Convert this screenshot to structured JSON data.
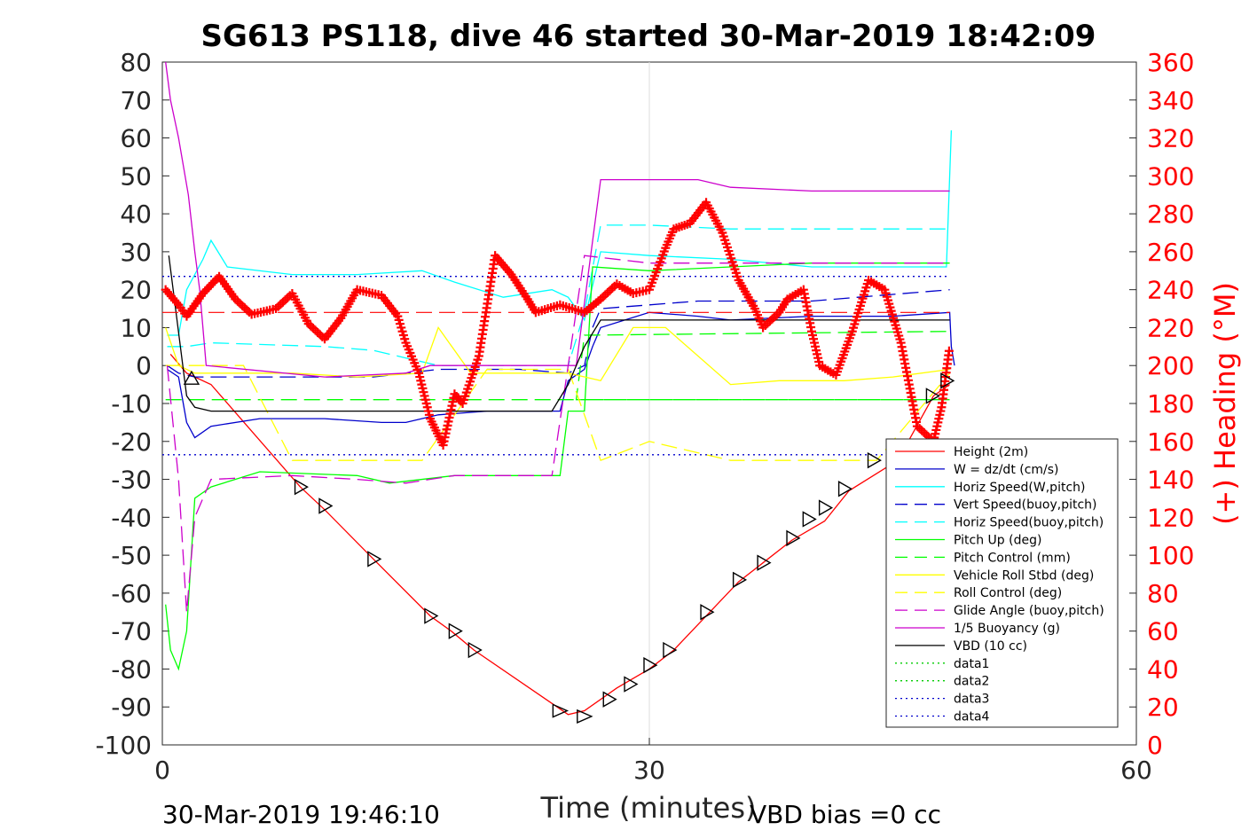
{
  "chart_data": {
    "type": "line",
    "title": "SG613 PS118, dive 46 started 30-Mar-2019 18:42:09",
    "xlabel": "Time (minutes)",
    "ylabel_right": "(+) Heading (°M)",
    "xlim": [
      0,
      60
    ],
    "ylim_left": [
      -100,
      80
    ],
    "ylim_right": [
      0,
      360
    ],
    "x_ticks": [
      "0",
      "30",
      "60"
    ],
    "y_ticks_left": [
      "80",
      "70",
      "60",
      "50",
      "40",
      "30",
      "20",
      "10",
      "0",
      "-10",
      "-20",
      "-30",
      "-40",
      "-50",
      "-60",
      "-70",
      "-80",
      "-90",
      "-100"
    ],
    "y_ticks_right": [
      "360",
      "340",
      "320",
      "300",
      "280",
      "260",
      "240",
      "220",
      "200",
      "180",
      "160",
      "140",
      "120",
      "100",
      "80",
      "60",
      "40",
      "20",
      "0"
    ],
    "grid": "x only at 30",
    "legend_position": "bottom-right",
    "footer_left": "30-Mar-2019 19:46:10",
    "footer_right": "VBD bias =0 cc",
    "series": [
      {
        "name": "Height (2m)",
        "color": "#ff0000",
        "style": "solid",
        "points": [
          [
            0.5,
            3
          ],
          [
            1.5,
            -2
          ],
          [
            3,
            -5
          ],
          [
            8.5,
            -32
          ],
          [
            10,
            -38
          ],
          [
            13,
            -51
          ],
          [
            16.5,
            -66
          ],
          [
            17.8,
            -70
          ],
          [
            19.2,
            -75
          ],
          [
            25,
            -92
          ],
          [
            26,
            -91
          ],
          [
            28,
            -85
          ],
          [
            30,
            -80
          ],
          [
            31.5,
            -75
          ],
          [
            33.5,
            -66
          ],
          [
            35.5,
            -57
          ],
          [
            37,
            -52
          ],
          [
            38.8,
            -46
          ],
          [
            40.8,
            -41
          ],
          [
            42.3,
            -33
          ],
          [
            45.3,
            -25
          ],
          [
            47.5,
            -8
          ],
          [
            48.5,
            -5
          ]
        ]
      },
      {
        "name": "W = dz/dt (cm/s)",
        "color": "#0000cc",
        "style": "solid",
        "points": [
          [
            0.3,
            -1
          ],
          [
            1,
            -3
          ],
          [
            1.5,
            -15
          ],
          [
            2,
            -19
          ],
          [
            3,
            -16
          ],
          [
            6,
            -14
          ],
          [
            10,
            -14
          ],
          [
            13.5,
            -15
          ],
          [
            15,
            -15
          ],
          [
            17,
            -13
          ],
          [
            20,
            -12
          ],
          [
            24.5,
            -12
          ],
          [
            25,
            -4
          ],
          [
            26,
            -1
          ],
          [
            26.5,
            5
          ],
          [
            27,
            10
          ],
          [
            30,
            14
          ],
          [
            33,
            13
          ],
          [
            35,
            12
          ],
          [
            40,
            13
          ],
          [
            45,
            13
          ],
          [
            48.5,
            14
          ],
          [
            48.6,
            5
          ],
          [
            48.8,
            0
          ]
        ]
      },
      {
        "name": "Horiz Speed(W,pitch)",
        "color": "#00ffff",
        "style": "solid",
        "points": [
          [
            0.3,
            8
          ],
          [
            1,
            8
          ],
          [
            1.5,
            20
          ],
          [
            2.5,
            28
          ],
          [
            3,
            33
          ],
          [
            4,
            26
          ],
          [
            8,
            24
          ],
          [
            12,
            24
          ],
          [
            16,
            25
          ],
          [
            18,
            22
          ],
          [
            21,
            18
          ],
          [
            24,
            20
          ],
          [
            25,
            18
          ],
          [
            26,
            12
          ],
          [
            27,
            30
          ],
          [
            30,
            29
          ],
          [
            35,
            28
          ],
          [
            40,
            26
          ],
          [
            45,
            26
          ],
          [
            48.3,
            26
          ],
          [
            48.6,
            62
          ]
        ]
      },
      {
        "name": "Vert Speed(buoy,pitch)",
        "color": "#0000cc",
        "style": "dashed",
        "points": [
          [
            0.3,
            0
          ],
          [
            1,
            -2
          ],
          [
            2,
            -3
          ],
          [
            8,
            -3
          ],
          [
            13,
            -3
          ],
          [
            17,
            -1
          ],
          [
            22,
            -1
          ],
          [
            25,
            -2
          ],
          [
            26,
            0
          ],
          [
            26.5,
            10
          ],
          [
            27,
            15
          ],
          [
            33,
            17
          ],
          [
            40,
            17
          ],
          [
            48.5,
            20
          ]
        ]
      },
      {
        "name": "Horiz Speed(buoy,pitch)",
        "color": "#00ffff",
        "style": "dashed",
        "points": [
          [
            0.3,
            5
          ],
          [
            1.5,
            5
          ],
          [
            3,
            6
          ],
          [
            10,
            5
          ],
          [
            13,
            4
          ],
          [
            15,
            2
          ],
          [
            17,
            0
          ],
          [
            25,
            0
          ],
          [
            26,
            14
          ],
          [
            27,
            37
          ],
          [
            30,
            37
          ],
          [
            35,
            36
          ],
          [
            40,
            36
          ],
          [
            48.5,
            36
          ]
        ]
      },
      {
        "name": "Pitch Up (deg)",
        "color": "#00ff00",
        "style": "solid",
        "points": [
          [
            0.2,
            -63
          ],
          [
            0.5,
            -75
          ],
          [
            1,
            -80
          ],
          [
            1.5,
            -70
          ],
          [
            2,
            -35
          ],
          [
            3,
            -32
          ],
          [
            6,
            -28
          ],
          [
            12,
            -29
          ],
          [
            14,
            -31
          ],
          [
            18,
            -29
          ],
          [
            24.5,
            -29
          ],
          [
            25,
            -12
          ],
          [
            26,
            -12
          ],
          [
            26.5,
            26
          ],
          [
            30,
            25
          ],
          [
            35,
            26
          ],
          [
            40,
            27
          ],
          [
            45,
            27
          ],
          [
            48.5,
            27
          ]
        ]
      },
      {
        "name": "Pitch Control (mm)",
        "color": "#00ff00",
        "style": "dashed",
        "points": [
          [
            0.2,
            -9
          ],
          [
            48.5,
            -9
          ],
          [
            25.5,
            -9
          ],
          [
            26,
            8
          ],
          [
            48.5,
            9
          ]
        ]
      },
      {
        "name": "Vehicle Roll Stbd (deg)",
        "color": "#ffff00",
        "style": "solid",
        "points": [
          [
            0.2,
            10
          ],
          [
            1,
            0
          ],
          [
            2,
            -2
          ],
          [
            8,
            -2
          ],
          [
            12,
            -3
          ],
          [
            16,
            -2
          ],
          [
            17,
            10
          ],
          [
            19,
            -2
          ],
          [
            22,
            -2
          ],
          [
            25,
            -2
          ],
          [
            27,
            -4
          ],
          [
            29,
            10
          ],
          [
            31,
            10
          ],
          [
            35,
            -5
          ],
          [
            38,
            -4
          ],
          [
            42,
            -4
          ],
          [
            45,
            -3
          ],
          [
            48.5,
            -1
          ]
        ]
      },
      {
        "name": "Roll Control (deg)",
        "color": "#ffff00",
        "style": "dashed",
        "points": [
          [
            0.2,
            0
          ],
          [
            3,
            0
          ],
          [
            5,
            0
          ],
          [
            8,
            -25
          ],
          [
            12,
            -25
          ],
          [
            16,
            -25
          ],
          [
            20,
            -1
          ],
          [
            25,
            -1
          ],
          [
            27,
            -25
          ],
          [
            30,
            -20
          ],
          [
            35,
            -25
          ],
          [
            38,
            -25
          ],
          [
            42,
            -25
          ],
          [
            44,
            -25
          ],
          [
            48.5,
            -2
          ]
        ]
      },
      {
        "name": "Glide Angle (buoy,pitch)",
        "color": "#cc00cc",
        "style": "dashed",
        "points": [
          [
            0.3,
            0
          ],
          [
            1,
            -30
          ],
          [
            1.5,
            -65
          ],
          [
            2,
            -40
          ],
          [
            3,
            -30
          ],
          [
            8,
            -29
          ],
          [
            12,
            -30
          ],
          [
            15,
            -31
          ],
          [
            18,
            -29
          ],
          [
            24,
            -29
          ],
          [
            26,
            29
          ],
          [
            30,
            27
          ],
          [
            35,
            27
          ],
          [
            40,
            27
          ],
          [
            48.5,
            27
          ]
        ]
      },
      {
        "name": "1/5 Buoyancy (g)",
        "color": "#cc00cc",
        "style": "solid",
        "points": [
          [
            0.2,
            80
          ],
          [
            0.5,
            70
          ],
          [
            1,
            60
          ],
          [
            1.6,
            45
          ],
          [
            2,
            30
          ],
          [
            2.3,
            20
          ],
          [
            2.7,
            0
          ],
          [
            10,
            -3
          ],
          [
            15,
            -2
          ],
          [
            16.5,
            0
          ],
          [
            20,
            0
          ],
          [
            24,
            0
          ],
          [
            25.5,
            0
          ],
          [
            27,
            49
          ],
          [
            30,
            49
          ],
          [
            33,
            49
          ],
          [
            35,
            47
          ],
          [
            40,
            46
          ],
          [
            48.5,
            46
          ]
        ]
      },
      {
        "name": "VBD (10 cc)",
        "color": "#000000",
        "style": "solid",
        "points": [
          [
            0.4,
            29
          ],
          [
            1.5,
            -8
          ],
          [
            2,
            -11
          ],
          [
            3,
            -12
          ],
          [
            10,
            -12
          ],
          [
            15,
            -12
          ],
          [
            20,
            -12
          ],
          [
            24,
            -12
          ],
          [
            25,
            -5
          ],
          [
            26,
            5
          ],
          [
            27,
            12
          ],
          [
            30,
            12
          ],
          [
            40,
            12
          ],
          [
            48.5,
            12
          ]
        ]
      },
      {
        "name": "data1",
        "color": "#00cc00",
        "style": "dotted",
        "points": []
      },
      {
        "name": "data2",
        "color": "#00cc00",
        "style": "dotted",
        "points": []
      },
      {
        "name": "data3",
        "color": "#0000cc",
        "style": "dotted",
        "points": [
          [
            0,
            23.5
          ],
          [
            48.5,
            23.5
          ]
        ]
      },
      {
        "name": "data4",
        "color": "#0000cc",
        "style": "dotted",
        "points": [
          [
            0,
            -23.5
          ],
          [
            48.5,
            -23.5
          ]
        ]
      }
    ],
    "reference_lines": [
      {
        "y_right": 228,
        "color": "#ff0000",
        "style": "dashed"
      }
    ],
    "heading_series": {
      "name": "Heading",
      "color": "#ff0000",
      "marker": "plus",
      "points": [
        [
          0.2,
          240
        ],
        [
          1,
          232
        ],
        [
          1.5,
          226
        ],
        [
          2.5,
          238
        ],
        [
          3.5,
          247
        ],
        [
          4.5,
          235
        ],
        [
          5.5,
          227
        ],
        [
          7,
          230
        ],
        [
          8,
          238
        ],
        [
          9,
          222
        ],
        [
          10,
          214
        ],
        [
          11,
          225
        ],
        [
          12,
          240
        ],
        [
          13.5,
          237
        ],
        [
          14.5,
          226
        ],
        [
          15,
          212
        ],
        [
          15.8,
          196
        ],
        [
          16.5,
          172
        ],
        [
          17.3,
          158
        ],
        [
          18,
          185
        ],
        [
          18.5,
          180
        ],
        [
          19.5,
          205
        ],
        [
          20.5,
          258
        ],
        [
          21.5,
          248
        ],
        [
          22.5,
          235
        ],
        [
          23,
          228
        ],
        [
          24.5,
          232
        ],
        [
          26,
          228
        ],
        [
          27,
          235
        ],
        [
          28,
          243
        ],
        [
          29,
          238
        ],
        [
          30,
          240
        ],
        [
          31,
          262
        ],
        [
          31.5,
          272
        ],
        [
          32.5,
          275
        ],
        [
          33.5,
          286
        ],
        [
          34.5,
          270
        ],
        [
          35.5,
          245
        ],
        [
          36.5,
          230
        ],
        [
          37,
          220
        ],
        [
          38,
          228
        ],
        [
          38.5,
          235
        ],
        [
          39.5,
          240
        ],
        [
          40,
          218
        ],
        [
          40.5,
          200
        ],
        [
          41.5,
          195
        ],
        [
          42.5,
          218
        ],
        [
          43.5,
          245
        ],
        [
          44.5,
          240
        ],
        [
          45.5,
          212
        ],
        [
          46.5,
          168
        ],
        [
          47.5,
          160
        ],
        [
          48,
          178
        ],
        [
          48.5,
          210
        ]
      ]
    },
    "triangle_markers": [
      [
        1.8,
        -3.5
      ],
      [
        8.5,
        -32
      ],
      [
        10,
        -37
      ],
      [
        13,
        -51
      ],
      [
        16.5,
        -66
      ],
      [
        18,
        -70
      ],
      [
        19.2,
        -75
      ],
      [
        24.5,
        -91
      ],
      [
        26,
        -92.5
      ],
      [
        27.5,
        -88
      ],
      [
        28.8,
        -84
      ],
      [
        30,
        -79
      ],
      [
        31.2,
        -75
      ],
      [
        33.5,
        -65
      ],
      [
        35.5,
        -56.5
      ],
      [
        37,
        -52
      ],
      [
        38.8,
        -45.5
      ],
      [
        39.8,
        -40.5
      ],
      [
        40.8,
        -37.5
      ],
      [
        42,
        -32.5
      ],
      [
        43.8,
        -25
      ],
      [
        47.4,
        -8
      ],
      [
        48.3,
        -4
      ]
    ],
    "legend": [
      "Height (2m)",
      "W = dz/dt (cm/s)",
      "Horiz Speed(W,pitch)",
      "Vert Speed(buoy,pitch)",
      "Horiz Speed(buoy,pitch)",
      "Pitch Up (deg)",
      "Pitch Control (mm)",
      "Vehicle Roll Stbd (deg)",
      "Roll Control (deg)",
      "Glide Angle (buoy,pitch)",
      "1/5 Buoyancy (g)",
      "VBD (10 cc)",
      "data1",
      "data2",
      "data3",
      "data4"
    ]
  }
}
